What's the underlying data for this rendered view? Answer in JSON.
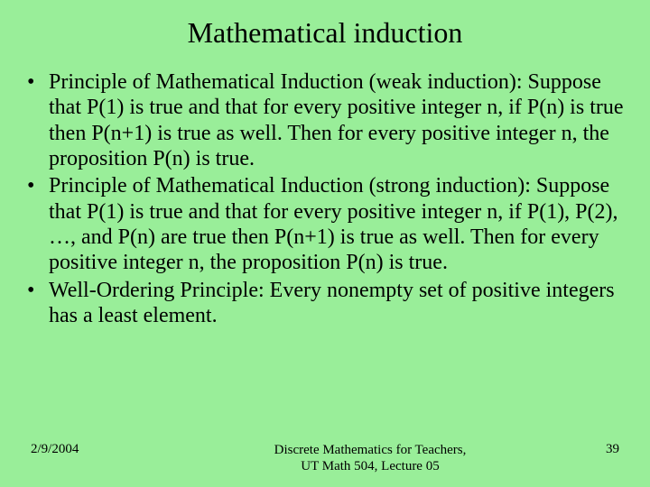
{
  "background_color": "#99ee99",
  "text_color": "#000000",
  "title": "Mathematical induction",
  "title_fontsize": 32,
  "body_fontsize": 24,
  "footer_fontsize": 15,
  "bullets": [
    "Principle of Mathematical Induction (weak induction): Suppose that P(1) is true and that for every positive integer n, if P(n) is true then P(n+1) is true as well. Then for every positive integer n, the proposition P(n) is true.",
    "Principle of Mathematical Induction (strong induction): Suppose that P(1) is true and that for every positive integer n, if P(1), P(2), …, and P(n) are true then P(n+1) is true as well. Then for every positive integer n, the proposition P(n) is true.",
    "Well-Ordering Principle: Every nonempty set of positive integers has a least element."
  ],
  "footer": {
    "date": "2/9/2004",
    "course_line1": "Discrete Mathematics for Teachers,",
    "course_line2": "UT Math 504, Lecture 05",
    "page_number": "39"
  }
}
